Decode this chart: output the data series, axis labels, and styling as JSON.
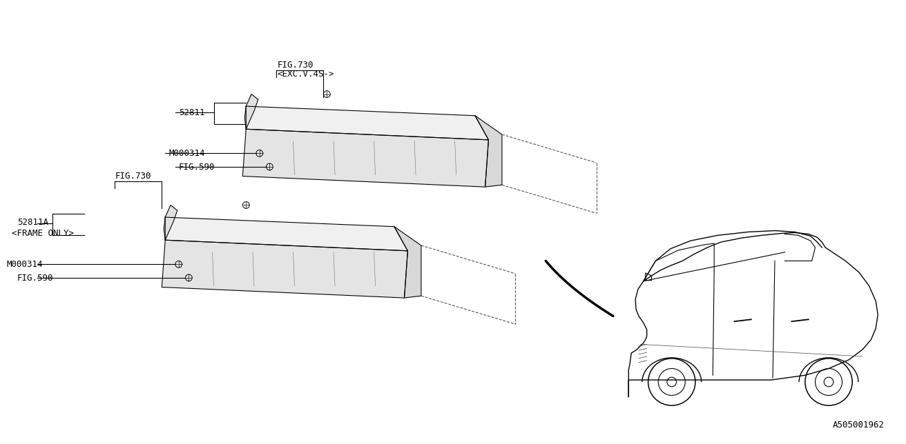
{
  "background_color": "#ffffff",
  "line_color": "#000000",
  "diagram_id": "A505001962",
  "labels": {
    "fig730_top": "FIG.730",
    "exc_v_4s": "<EXC.V.4S->",
    "part_52811": "52811",
    "m000314_top": "M000314",
    "fig590_top": "FIG.590",
    "fig730_bot": "FIG.730",
    "part_52811a": "52811A",
    "frame_only": "<FRAME ONLY>",
    "m000314_bot": "M000314",
    "fig590_bot": "FIG.590"
  },
  "font_size": 9,
  "lw": 0.8
}
